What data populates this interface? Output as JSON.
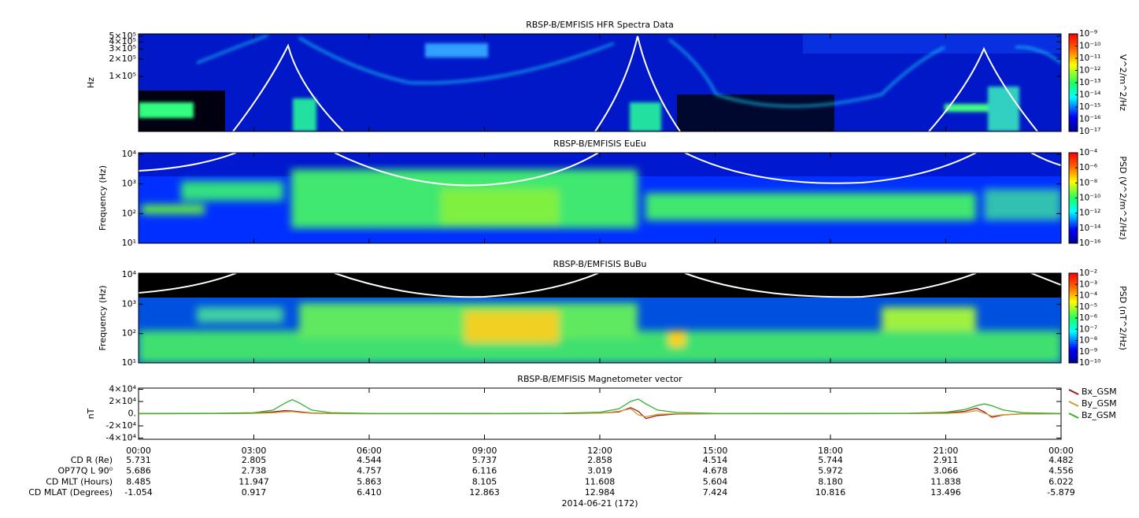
{
  "chart_data": [
    {
      "type": "spectrogram",
      "title": "RBSP-B/EMFISIS  HFR Spectra Data",
      "y_label": "Hz",
      "ylog": true,
      "ylim": [
        11000,
        550000
      ],
      "yticks": [
        {
          "value": 500000,
          "label": "5×10⁵"
        },
        {
          "value": 400000,
          "label": "4×10⁵"
        },
        {
          "value": 300000,
          "label": "3×10⁵"
        },
        {
          "value": 200000,
          "label": "2×10⁵"
        },
        {
          "value": 100000,
          "label": "1×10⁵"
        }
      ],
      "colorbar": {
        "label": "V^2/m^2/Hz",
        "zlim": [
          1e-17,
          1e-09
        ],
        "ticks": [
          {
            "value": 1e-17,
            "label": "10⁻¹⁷"
          },
          {
            "value": 1e-16,
            "label": "10⁻¹⁶"
          },
          {
            "value": 1e-15,
            "label": "10⁻¹⁵"
          },
          {
            "value": 1e-14,
            "label": "10⁻¹⁴"
          },
          {
            "value": 1e-13,
            "label": "10⁻¹³"
          },
          {
            "value": 1e-12,
            "label": "10⁻¹²"
          },
          {
            "value": 1e-11,
            "label": "10⁻¹¹"
          },
          {
            "value": 1e-10,
            "label": "10⁻¹⁰"
          },
          {
            "value": 1e-09,
            "label": "10⁻⁹"
          }
        ]
      }
    },
    {
      "type": "spectrogram",
      "title": "RBSP-B/EMFISIS  EuEu",
      "y_label": "Frequency (Hz)",
      "ylog": true,
      "ylim": [
        10,
        11300
      ],
      "yticks": [
        {
          "value": 10,
          "label": "10¹"
        },
        {
          "value": 100,
          "label": "10²"
        },
        {
          "value": 1000,
          "label": "10³"
        },
        {
          "value": 10000,
          "label": "10⁴"
        }
      ],
      "colorbar": {
        "label": "PSD (V^2/m^2/Hz)",
        "zlim": [
          1e-16,
          0.0001
        ],
        "ticks": [
          {
            "value": 1e-16,
            "label": "10⁻¹⁶"
          },
          {
            "value": 1e-14,
            "label": "10⁻¹⁴"
          },
          {
            "value": 1e-12,
            "label": "10⁻¹²"
          },
          {
            "value": 1e-10,
            "label": "10⁻¹⁰"
          },
          {
            "value": 1e-08,
            "label": "10⁻⁸"
          },
          {
            "value": 1e-06,
            "label": "10⁻⁶"
          },
          {
            "value": 0.0001,
            "label": "10⁻⁴"
          }
        ]
      }
    },
    {
      "type": "spectrogram",
      "title": "RBSP-B/EMFISIS  BuBu",
      "y_label": "Frequency (Hz)",
      "ylog": true,
      "ylim": [
        10,
        11300
      ],
      "yticks": [
        {
          "value": 10,
          "label": "10¹"
        },
        {
          "value": 100,
          "label": "10²"
        },
        {
          "value": 1000,
          "label": "10³"
        },
        {
          "value": 10000,
          "label": "10⁴"
        }
      ],
      "colorbar": {
        "label": "PSD (nT^2/Hz)",
        "zlim": [
          1e-10,
          0.01
        ],
        "ticks": [
          {
            "value": 1e-10,
            "label": "10⁻¹⁰"
          },
          {
            "value": 1e-09,
            "label": "10⁻⁹"
          },
          {
            "value": 1e-08,
            "label": "10⁻⁸"
          },
          {
            "value": 1e-07,
            "label": "10⁻⁷"
          },
          {
            "value": 1e-06,
            "label": "10⁻⁶"
          },
          {
            "value": 1e-05,
            "label": "10⁻⁵"
          },
          {
            "value": 0.0001,
            "label": "10⁻⁴"
          },
          {
            "value": 0.001,
            "label": "10⁻³"
          },
          {
            "value": 0.01,
            "label": "10⁻²"
          }
        ]
      }
    },
    {
      "type": "line",
      "title": "RBSP-B/EMFISIS  Magnetometer vector",
      "y_label": "nT",
      "ylim": [
        -42000,
        42000
      ],
      "yticks": [
        {
          "value": -40000,
          "label": "-4×10⁴"
        },
        {
          "value": -20000,
          "label": "-2×10⁴"
        },
        {
          "value": 0,
          "label": "0."
        },
        {
          "value": 20000,
          "label": "2×10⁴"
        },
        {
          "value": 40000,
          "label": "4×10⁴"
        }
      ],
      "xlim": [
        0,
        24
      ],
      "xticks": [
        {
          "value": 0,
          "label": "00:00"
        },
        {
          "value": 3,
          "label": "03:00"
        },
        {
          "value": 6,
          "label": "06:00"
        },
        {
          "value": 9,
          "label": "09:00"
        },
        {
          "value": 12,
          "label": "12:00"
        },
        {
          "value": 15,
          "label": "15:00"
        },
        {
          "value": 18,
          "label": "18:00"
        },
        {
          "value": 21,
          "label": "21:00"
        },
        {
          "value": 24,
          "label": "00:00"
        }
      ],
      "x": [
        0,
        2,
        3,
        3.5,
        3.8,
        4,
        4.2,
        4.5,
        5,
        6,
        9,
        11,
        12,
        12.5,
        12.8,
        13,
        13.2,
        13.5,
        14,
        15,
        18,
        20,
        21,
        21.5,
        21.8,
        22,
        22.2,
        22.5,
        23,
        24
      ],
      "series": [
        {
          "name": "Bx_GSM",
          "color": "#a01818",
          "values": [
            0,
            200,
            800,
            3000,
            5000,
            4500,
            3000,
            1000,
            300,
            0,
            0,
            200,
            1000,
            3000,
            10000,
            4000,
            -8000,
            -3000,
            -500,
            0,
            0,
            200,
            1000,
            4000,
            9000,
            3000,
            -6000,
            -2000,
            -300,
            0
          ]
        },
        {
          "name": "By_GSM",
          "color": "#c8a030",
          "values": [
            0,
            100,
            500,
            1500,
            3000,
            3500,
            2000,
            600,
            200,
            0,
            0,
            100,
            800,
            4000,
            8000,
            -2000,
            -5000,
            -1000,
            0,
            0,
            0,
            100,
            500,
            2000,
            5000,
            1000,
            -4000,
            -1500,
            -200,
            0
          ]
        },
        {
          "name": "Bz_GSM",
          "color": "#30b030",
          "values": [
            200,
            600,
            1500,
            6000,
            17000,
            23000,
            17000,
            6000,
            1500,
            500,
            400,
            800,
            2500,
            8000,
            20000,
            24000,
            16000,
            6000,
            2000,
            500,
            400,
            700,
            2500,
            7000,
            13000,
            16000,
            13000,
            6000,
            1500,
            300
          ]
        }
      ]
    }
  ],
  "ephemeris": {
    "date": "2014-06-21 (172)",
    "rows": [
      {
        "label": "CD R (Re)",
        "values": [
          "5.731",
          "2.805",
          "4.544",
          "5.737",
          "2.858",
          "4.514",
          "5.744",
          "2.911",
          "4.482"
        ]
      },
      {
        "label": "OP77Q L 90⁰",
        "values": [
          "5.686",
          "2.738",
          "4.757",
          "6.116",
          "3.019",
          "4.678",
          "5.972",
          "3.066",
          "4.556"
        ]
      },
      {
        "label": "CD MLT (Hours)",
        "values": [
          "8.485",
          "11.947",
          "5.863",
          "8.105",
          "11.608",
          "5.604",
          "8.180",
          "11.838",
          "6.022"
        ]
      },
      {
        "label": "CD MLAT (Degrees)",
        "values": [
          "-1.054",
          "0.917",
          "6.410",
          "12.863",
          "12.984",
          "7.424",
          "10.816",
          "13.496",
          "-5.879"
        ]
      }
    ]
  }
}
